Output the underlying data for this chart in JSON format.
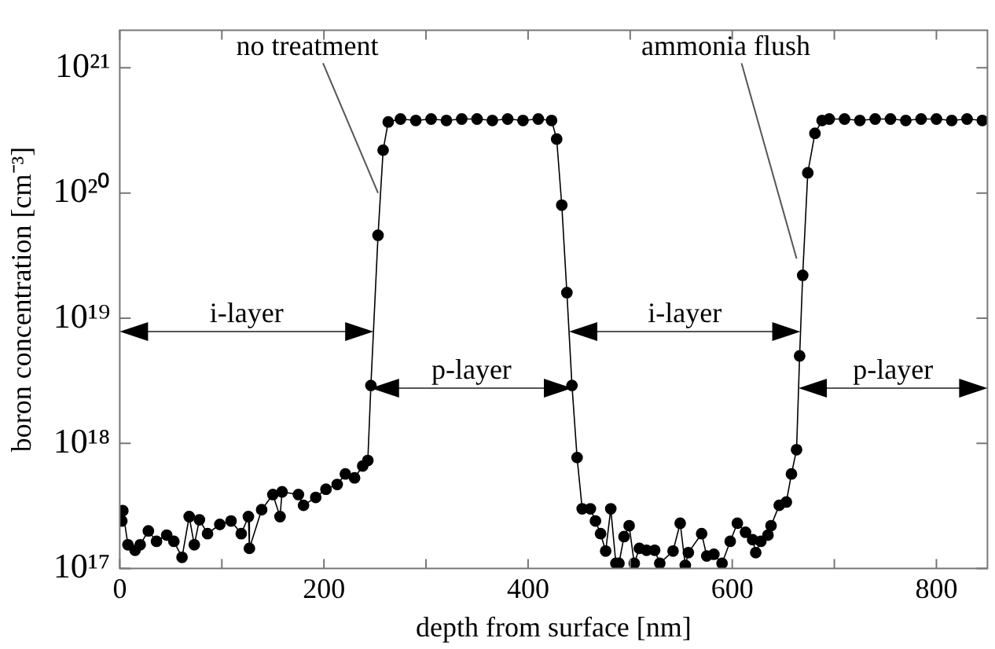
{
  "chart_data": {
    "type": "line",
    "xlabel": "depth from surface [nm]",
    "ylabel": "boron concentration [cm⁻³]",
    "log": "y",
    "marker": "circle",
    "line_style": "solid",
    "grid": false,
    "legend": false,
    "xlim": [
      0,
      850
    ],
    "xticks": [
      0,
      {
        "value": 100,
        "label": null
      },
      200,
      {
        "value": 300,
        "label": null
      },
      400,
      {
        "value": 500,
        "label": null
      },
      600,
      {
        "value": 700,
        "label": null
      },
      800
    ],
    "ylim": [
      1e+17,
      2e+21
    ],
    "yticks": [
      {
        "value": 1e+17,
        "label": "10¹⁷"
      },
      {
        "value": 1e+18,
        "label": "10¹⁸"
      },
      {
        "value": 1e+19,
        "label": "10¹⁹"
      },
      {
        "value": 1e+20,
        "label": "10²⁰"
      },
      {
        "value": 1e+21,
        "label": "10²¹"
      }
    ],
    "series": [
      {
        "color": "#000000",
        "x": [
          2,
          3,
          8,
          15,
          20,
          28,
          36,
          46,
          53,
          61,
          68,
          73,
          78,
          86,
          98,
          109,
          119,
          126,
          127,
          139,
          150,
          157,
          159,
          175,
          180,
          192,
          202,
          213,
          221,
          230,
          238,
          243,
          246,
          253,
          258,
          263,
          275,
          290,
          305,
          320,
          335,
          350,
          365,
          380,
          395,
          410,
          423,
          428,
          433,
          438,
          443,
          448,
          453,
          461,
          466,
          471,
          476,
          481,
          486,
          489,
          494,
          499,
          504,
          509,
          516,
          524,
          529,
          542,
          549,
          554,
          557,
          570,
          575,
          582,
          590,
          598,
          605,
          613,
          620,
          623,
          628,
          635,
          638,
          646,
          653,
          658,
          663,
          666,
          669,
          674,
          681,
          688,
          695,
          710,
          725,
          740,
          755,
          770,
          785,
          800,
          815,
          830,
          845
        ],
        "values": [
          2.4e+17,
          2.9e+17,
          1.55e+17,
          1.4e+17,
          1.55e+17,
          2e+17,
          1.65e+17,
          1.85e+17,
          1.65e+17,
          1.23e+17,
          2.6e+17,
          1.55e+17,
          2.45e+17,
          1.9e+17,
          2.25e+17,
          2.4e+17,
          1.9e+17,
          2.6e+17,
          1.45e+17,
          2.95e+17,
          3.9e+17,
          2.6e+17,
          4.1e+17,
          3.9e+17,
          3.2e+17,
          3.7e+17,
          4.3e+17,
          4.7e+17,
          5.7e+17,
          5.3e+17,
          6.6e+17,
          7.3e+17,
          2.9e+18,
          4.6e+19,
          2.2e+20,
          3.7e+20,
          3.9e+20,
          3.8e+20,
          3.9e+20,
          3.8e+20,
          3.9e+20,
          3.9e+20,
          3.8e+20,
          3.9e+20,
          3.8e+20,
          3.9e+20,
          3.8e+20,
          2.7e+20,
          8e+19,
          1.6e+19,
          2.9e+18,
          7.7e+17,
          3e+17,
          3e+17,
          2.4e+17,
          1.9e+17,
          1.38e+17,
          3e+17,
          1.1e+17,
          1.1e+17,
          1.8e+17,
          2.2e+17,
          1.1e+17,
          1.45e+17,
          1.4e+17,
          1.4e+17,
          1.1e+17,
          1.38e+17,
          2.3e+17,
          1.06e+17,
          1.34e+17,
          1.9e+17,
          1.26e+17,
          1.3e+17,
          1.1e+17,
          1.65e+17,
          2.3e+17,
          1.95e+17,
          1.7e+17,
          1.34e+17,
          1.65e+17,
          1.85e+17,
          2.2e+17,
          3.2e+17,
          3.4e+17,
          5.7e+17,
          8.9e+17,
          5e+18,
          2.2e+19,
          1.45e+20,
          3e+20,
          3.8e+20,
          3.9e+20,
          3.9e+20,
          3.8e+20,
          3.9e+20,
          3.9e+20,
          3.8e+20,
          3.9e+20,
          3.9e+20,
          3.8e+20,
          3.9e+20,
          3.8e+20
        ]
      }
    ],
    "annotations": [
      {
        "text": "no treatment",
        "x": 253,
        "y": 1e+20
      },
      {
        "text": "ammonia flush",
        "x": 663,
        "y": 3e+19
      },
      "i-layer",
      "p-layer",
      "i-layer",
      "p-layer"
    ]
  }
}
